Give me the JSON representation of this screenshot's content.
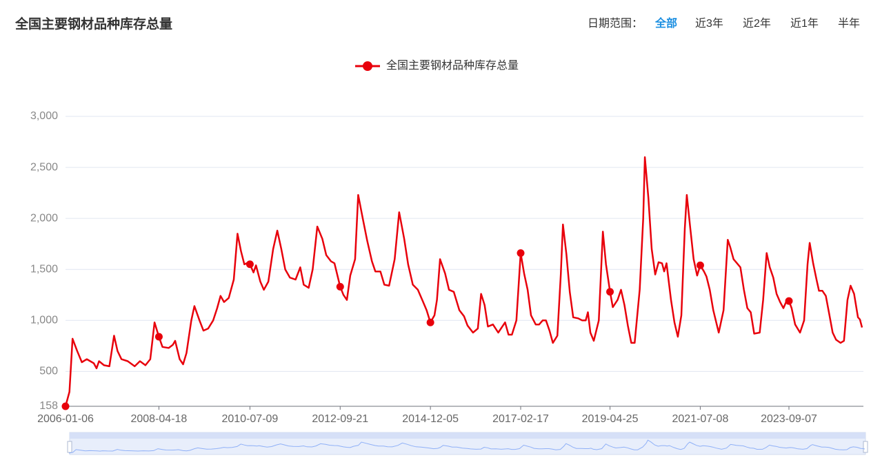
{
  "header": {
    "title": "全国主要钢材品种库存总量",
    "range_label": "日期范围：",
    "range_options": [
      "全部",
      "近3年",
      "近2年",
      "近1年",
      "半年"
    ]
  },
  "chart_data": {
    "type": "line",
    "color": "#e8000b",
    "x": [
      "2006-01-06",
      "2006-02-10",
      "2006-03-10",
      "2006-04-20",
      "2006-06-01",
      "2006-07-15",
      "2006-09-15",
      "2006-10-10",
      "2006-11-01",
      "2006-12-15",
      "2007-02-01",
      "2007-03-15",
      "2007-04-15",
      "2007-05-20",
      "2007-07-15",
      "2007-09-15",
      "2007-11-01",
      "2007-12-20",
      "2008-02-01",
      "2008-03-10",
      "2008-04-18",
      "2008-05-20",
      "2008-07-15",
      "2008-08-20",
      "2008-09-10",
      "2008-10-20",
      "2008-11-20",
      "2008-12-20",
      "2009-02-01",
      "2009-03-01",
      "2009-04-15",
      "2009-05-20",
      "2009-07-01",
      "2009-08-15",
      "2009-09-20",
      "2009-10-20",
      "2009-11-20",
      "2010-01-01",
      "2010-02-15",
      "2010-03-20",
      "2010-04-20",
      "2010-05-20",
      "2010-06-10",
      "2010-07-09",
      "2010-08-10",
      "2010-09-01",
      "2010-10-10",
      "2010-11-10",
      "2010-12-20",
      "2011-02-01",
      "2011-03-10",
      "2011-04-15",
      "2011-05-20",
      "2011-07-01",
      "2011-08-20",
      "2011-10-01",
      "2011-11-01",
      "2011-12-15",
      "2012-01-20",
      "2012-03-01",
      "2012-04-15",
      "2012-05-20",
      "2012-07-01",
      "2012-08-01",
      "2012-09-21",
      "2012-10-20",
      "2012-11-20",
      "2012-12-20",
      "2013-02-01",
      "2013-03-01",
      "2013-04-10",
      "2013-05-20",
      "2013-07-01",
      "2013-08-01",
      "2013-09-15",
      "2013-10-20",
      "2013-12-01",
      "2014-01-20",
      "2014-03-01",
      "2014-04-15",
      "2014-05-20",
      "2014-07-01",
      "2014-08-15",
      "2014-10-01",
      "2014-11-01",
      "2014-12-05",
      "2015-01-10",
      "2015-02-01",
      "2015-03-01",
      "2015-04-15",
      "2015-05-20",
      "2015-07-01",
      "2015-08-20",
      "2015-10-01",
      "2015-11-01",
      "2015-12-20",
      "2016-02-01",
      "2016-03-01",
      "2016-04-01",
      "2016-05-01",
      "2016-06-15",
      "2016-08-01",
      "2016-10-01",
      "2016-11-01",
      "2016-12-01",
      "2017-01-10",
      "2017-02-17",
      "2017-03-20",
      "2017-04-20",
      "2017-05-20",
      "2017-07-01",
      "2017-08-01",
      "2017-09-01",
      "2017-10-01",
      "2017-11-01",
      "2017-12-01",
      "2018-01-10",
      "2018-02-10",
      "2018-03-01",
      "2018-04-01",
      "2018-05-01",
      "2018-06-01",
      "2018-07-15",
      "2018-08-20",
      "2018-09-20",
      "2018-10-10",
      "2018-11-01",
      "2018-12-01",
      "2019-01-15",
      "2019-02-20",
      "2019-03-20",
      "2019-04-25",
      "2019-05-20",
      "2019-07-01",
      "2019-08-01",
      "2019-09-01",
      "2019-10-01",
      "2019-11-01",
      "2019-12-01",
      "2020-01-15",
      "2020-02-15",
      "2020-03-01",
      "2020-04-01",
      "2020-05-01",
      "2020-06-01",
      "2020-07-01",
      "2020-08-01",
      "2020-08-20",
      "2020-09-10",
      "2020-10-20",
      "2020-11-20",
      "2020-12-20",
      "2021-01-20",
      "2021-02-20",
      "2021-03-10",
      "2021-04-10",
      "2021-05-10",
      "2021-06-10",
      "2021-07-08",
      "2021-08-10",
      "2021-09-01",
      "2021-10-01",
      "2021-11-01",
      "2021-12-20",
      "2022-02-01",
      "2022-03-10",
      "2022-04-01",
      "2022-05-01",
      "2022-06-01",
      "2022-07-01",
      "2022-08-01",
      "2022-09-01",
      "2022-10-01",
      "2022-11-01",
      "2022-12-20",
      "2023-01-20",
      "2023-02-20",
      "2023-03-20",
      "2023-04-20",
      "2023-05-20",
      "2023-06-20",
      "2023-07-20",
      "2023-08-20",
      "2023-09-07",
      "2023-10-01",
      "2023-11-01",
      "2023-12-15",
      "2024-01-20",
      "2024-02-20",
      "2024-03-10",
      "2024-04-10",
      "2024-05-10",
      "2024-06-01",
      "2024-07-01",
      "2024-08-01",
      "2024-09-01",
      "2024-10-01",
      "2024-11-01",
      "2024-12-10",
      "2025-01-10",
      "2025-02-10",
      "2025-03-10",
      "2025-04-10",
      "2025-05-15",
      "2025-06-01",
      "2025-06-20"
    ],
    "series": [
      {
        "name": "全国主要钢材品种库存总量",
        "color": "#e8000b",
        "values": [
          158,
          300,
          820,
          700,
          590,
          620,
          580,
          530,
          600,
          560,
          550,
          850,
          700,
          620,
          600,
          550,
          600,
          560,
          620,
          980,
          840,
          740,
          730,
          760,
          800,
          620,
          570,
          680,
          1000,
          1140,
          1000,
          900,
          920,
          1000,
          1120,
          1240,
          1180,
          1220,
          1400,
          1850,
          1680,
          1550,
          1560,
          1550,
          1470,
          1540,
          1380,
          1300,
          1380,
          1700,
          1880,
          1700,
          1500,
          1420,
          1400,
          1520,
          1350,
          1320,
          1500,
          1920,
          1800,
          1640,
          1580,
          1560,
          1330,
          1250,
          1200,
          1440,
          1600,
          2230,
          2000,
          1780,
          1580,
          1480,
          1480,
          1350,
          1340,
          1600,
          2060,
          1800,
          1550,
          1350,
          1300,
          1180,
          1100,
          980,
          1050,
          1200,
          1600,
          1460,
          1300,
          1280,
          1100,
          1040,
          950,
          880,
          920,
          1260,
          1150,
          940,
          960,
          880,
          980,
          860,
          860,
          1000,
          1660,
          1460,
          1300,
          1050,
          960,
          960,
          1000,
          1000,
          900,
          780,
          850,
          1450,
          1940,
          1650,
          1280,
          1030,
          1020,
          1000,
          1000,
          1080,
          880,
          800,
          1000,
          1870,
          1550,
          1280,
          1130,
          1200,
          1300,
          1150,
          950,
          780,
          780,
          1300,
          2000,
          2600,
          2200,
          1700,
          1450,
          1570,
          1560,
          1480,
          1560,
          1200,
          980,
          840,
          1050,
          1900,
          2230,
          1900,
          1600,
          1440,
          1540,
          1480,
          1430,
          1300,
          1100,
          880,
          1100,
          1790,
          1720,
          1600,
          1560,
          1520,
          1300,
          1120,
          1080,
          870,
          880,
          1200,
          1660,
          1520,
          1420,
          1260,
          1180,
          1120,
          1200,
          1190,
          1120,
          960,
          880,
          1000,
          1550,
          1760,
          1560,
          1400,
          1290,
          1290,
          1240,
          1060,
          880,
          810,
          780,
          800,
          1200,
          1340,
          1260,
          1030,
          1010,
          930
        ]
      }
    ],
    "xlim": [
      "2006-01-06",
      "2025-06-20"
    ],
    "xticks": [
      "2006-01-06",
      "2008-04-18",
      "2010-07-09",
      "2012-09-21",
      "2014-12-05",
      "2017-02-17",
      "2019-04-25",
      "2021-07-08",
      "2023-09-07"
    ],
    "ylim": [
      158,
      3000
    ],
    "yticks": [
      158,
      500,
      {
        "value": 1000,
        "label": "1,000"
      },
      {
        "value": 1500,
        "label": "1,500"
      },
      {
        "value": 2000,
        "label": "2,000"
      },
      {
        "value": 2500,
        "label": "2,500"
      },
      {
        "value": 3000,
        "label": "3,000"
      }
    ],
    "grid": true
  }
}
